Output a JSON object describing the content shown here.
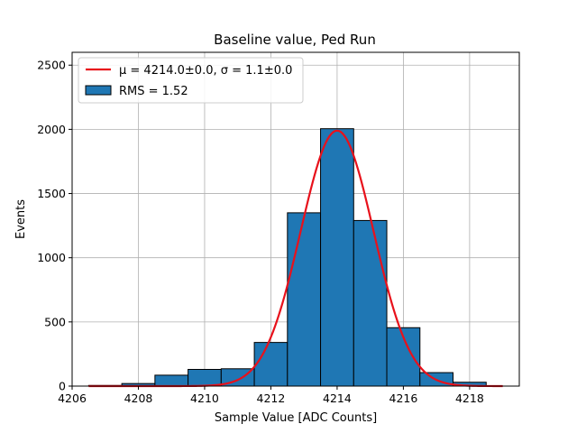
{
  "chart_data": {
    "type": "histogram",
    "title": "Baseline value, Ped Run",
    "xlabel": "Sample Value [ADC Counts]",
    "ylabel": "Events",
    "xlim": [
      4206,
      4219.5
    ],
    "ylim": [
      0,
      2600
    ],
    "xticks": [
      4206,
      4208,
      4210,
      4212,
      4214,
      4216,
      4218
    ],
    "yticks": [
      0,
      500,
      1000,
      1500,
      2000,
      2500
    ],
    "grid": true,
    "legend_position": "upper-left",
    "bins": {
      "edges": [
        4206.5,
        4207.5,
        4208.5,
        4209.5,
        4210.5,
        4211.5,
        4212.5,
        4213.5,
        4214.5,
        4215.5,
        4216.5,
        4217.5,
        4218.5
      ],
      "counts": [
        5,
        20,
        85,
        130,
        135,
        340,
        1350,
        2005,
        1290,
        455,
        105,
        30
      ]
    },
    "fit": {
      "type": "gaussian",
      "mu": 4214.0,
      "sigma": 1.1,
      "amplitude": 1990,
      "x_range": [
        4206.5,
        4219.0
      ],
      "legend_label": "μ = 4214.0±0.0, σ = 1.1±0.0"
    },
    "histogram_legend_label": "RMS = 1.52",
    "colors": {
      "bar_fill": "#1f77b4",
      "bar_edge": "#000000",
      "fit_line": "#e8111b",
      "grid": "#b0b0b0"
    }
  }
}
